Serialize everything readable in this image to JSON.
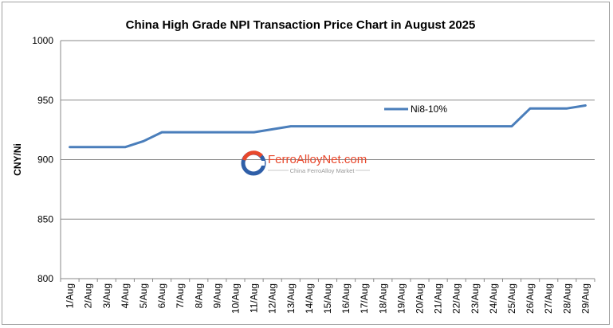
{
  "chart_data": {
    "type": "line",
    "title": "China High Grade NPI Transaction Price Chart in August 2025",
    "xlabel": "",
    "ylabel": "CNY/Ni",
    "ylim": [
      800,
      1000
    ],
    "yticks": [
      800,
      850,
      900,
      950,
      1000
    ],
    "grid": "horizontal",
    "legend_position": "upper-right",
    "categories": [
      "1/Aug",
      "2/Aug",
      "3/Aug",
      "4/Aug",
      "5/Aug",
      "6/Aug",
      "7/Aug",
      "8/Aug",
      "9/Aug",
      "10/Aug",
      "11/Aug",
      "12/Aug",
      "13/Aug",
      "14/Aug",
      "15/Aug",
      "16/Aug",
      "17/Aug",
      "18/Aug",
      "19/Aug",
      "20/Aug",
      "21/Aug",
      "22/Aug",
      "23/Aug",
      "24/Aug",
      "25/Aug",
      "26/Aug",
      "27/Aug",
      "28/Aug",
      "29/Aug"
    ],
    "series": [
      {
        "name": "Ni8-10%",
        "color": "#4a7ebb",
        "values": [
          910.5,
          910.5,
          910.5,
          910.5,
          915.5,
          923,
          923,
          923,
          923,
          923,
          923,
          925.5,
          928,
          928,
          928,
          928,
          928,
          928,
          928,
          928,
          928,
          928,
          928,
          928,
          928,
          943,
          943,
          943,
          945.5
        ]
      }
    ]
  },
  "watermark": {
    "brand": "FerroAlloyNet.com",
    "tagline": "China FerroAlloy Market",
    "brand_color": "#e8482c"
  }
}
